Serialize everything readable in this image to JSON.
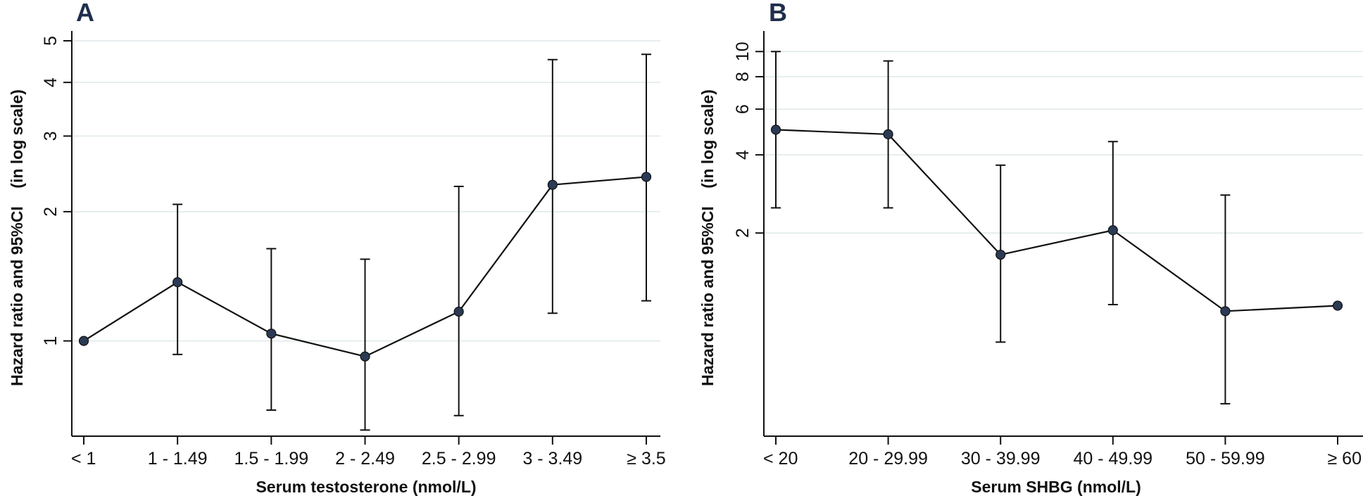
{
  "chart_data": [
    {
      "panel_label": "A",
      "type": "line",
      "xlabel": "Serum testosterone (nmol/L)",
      "ylabel": "Hazard ratio and 95%CI    (in log scale)",
      "y_scale": "log",
      "ylim": [
        0.6,
        5.0
      ],
      "yticks": [
        1,
        2,
        3,
        4,
        5
      ],
      "grid": true,
      "categories": [
        "< 1",
        "1 - 1.49",
        "1.5 - 1.99",
        "2 - 2.49",
        "2.5 - 2.99",
        "3 - 3.49",
        "≥ 3.5"
      ],
      "values": [
        1.0,
        1.37,
        1.04,
        0.92,
        1.17,
        2.31,
        2.41
      ],
      "ci_lower": [
        null,
        0.93,
        0.69,
        0.62,
        0.67,
        1.16,
        1.24
      ],
      "ci_upper": [
        null,
        2.08,
        1.64,
        1.55,
        2.29,
        4.52,
        4.65
      ],
      "colors": {
        "marker": "#2b3a55",
        "line": "#111111"
      }
    },
    {
      "panel_label": "B",
      "type": "line",
      "xlabel": "Serum SHBG (nmol/L)",
      "ylabel": "Hazard ratio and 95%CI    (in log scale)",
      "y_scale": "log",
      "ylim": [
        0.33,
        11.0
      ],
      "yticks": [
        2,
        4,
        6,
        8,
        10
      ],
      "grid": true,
      "categories": [
        "< 20",
        "20 - 29.99",
        "30 - 39.99",
        "40 - 49.99",
        "50 - 59.99",
        "≥ 60"
      ],
      "values": [
        5.0,
        4.8,
        1.65,
        2.05,
        1.0,
        1.05
      ],
      "ci_lower": [
        2.5,
        2.5,
        0.76,
        1.06,
        0.44,
        null
      ],
      "ci_upper": [
        10.0,
        9.2,
        3.65,
        4.5,
        2.8,
        null
      ],
      "colors": {
        "marker": "#2b3a55",
        "line": "#111111"
      }
    }
  ]
}
